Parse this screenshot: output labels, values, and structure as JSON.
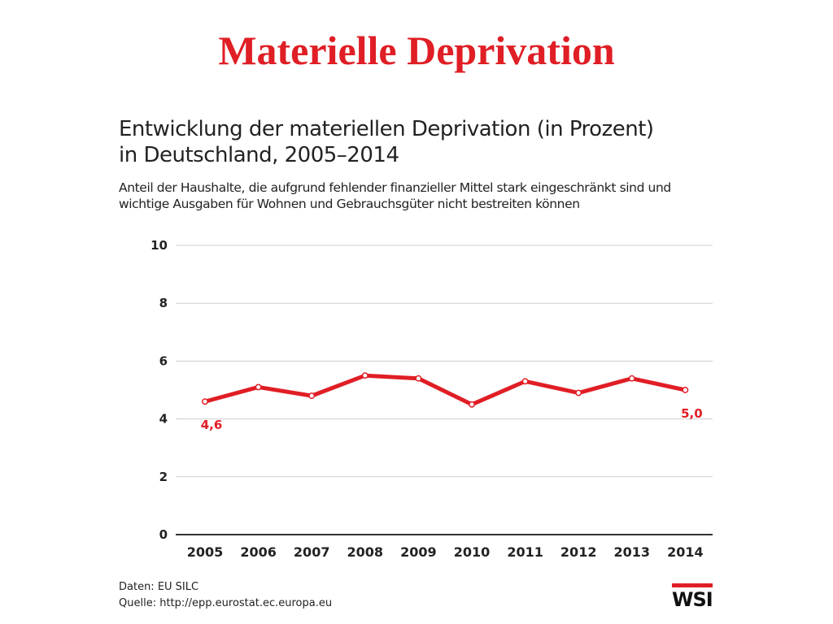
{
  "slide": {
    "title": "Materielle Deprivation"
  },
  "chart_heading": {
    "line1": "Entwicklung der materiellen Deprivation (in Prozent)",
    "line2": "in Deutschland, 2005–2014"
  },
  "chart_subheading": {
    "line1": "Anteil der Haushalte, die aufgrund fehlender finanzieller Mittel stark eingeschränkt sind und",
    "line2": "wichtige Ausgaben für Wohnen und Gebrauchsgüter nicht bestreiten können"
  },
  "chart_data": {
    "type": "line",
    "title": "Entwicklung der materiellen Deprivation (in Prozent) in Deutschland, 2005–2014",
    "subtitle": "Anteil der Haushalte, die aufgrund fehlender finanzieller Mittel stark eingeschränkt sind und wichtige Ausgaben für Wohnen und Gebrauchsgüter nicht bestreiten können",
    "xlabel": "",
    "ylabel": "",
    "x": [
      "2005",
      "2006",
      "2007",
      "2008",
      "2009",
      "2010",
      "2011",
      "2012",
      "2013",
      "2014"
    ],
    "series": [
      {
        "values": [
          4.6,
          5.1,
          4.8,
          5.5,
          5.4,
          4.5,
          5.3,
          4.9,
          5.4,
          5.0
        ],
        "color": "#e01e25"
      }
    ],
    "ylim": [
      0,
      10
    ],
    "yticks": [
      "0",
      "2",
      "4",
      "6",
      "8",
      "10"
    ],
    "grid": true,
    "data_labels": [
      {
        "index": 0,
        "text": "4,6"
      },
      {
        "index": 9,
        "text": "5,0"
      }
    ]
  },
  "source": {
    "daten": "Daten: EU SILC",
    "quelle": "Quelle: http://epp.eurostat.ec.europa.eu"
  },
  "logo": {
    "text": "WSI",
    "accent_color": "#e01e25"
  }
}
